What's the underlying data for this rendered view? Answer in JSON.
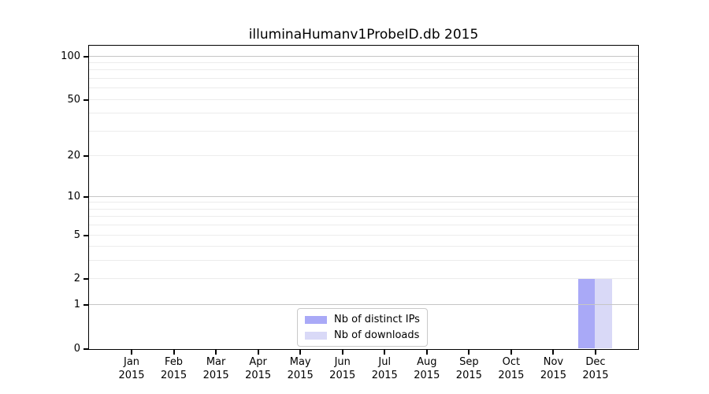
{
  "chart_data": {
    "type": "bar",
    "title": "illuminaHumanv1ProbeID.db 2015",
    "categories": [
      "Jan 2015",
      "Feb 2015",
      "Mar 2015",
      "Apr 2015",
      "May 2015",
      "Jun 2015",
      "Jul 2015",
      "Aug 2015",
      "Sep 2015",
      "Oct 2015",
      "Nov 2015",
      "Dec 2015"
    ],
    "series": [
      {
        "name": "Nb of distinct IPs",
        "color": "#a9a9f7",
        "values": [
          0,
          0,
          0,
          0,
          0,
          0,
          0,
          0,
          0,
          0,
          0,
          2
        ]
      },
      {
        "name": "Nb of downloads",
        "color": "#d9d9f7",
        "values": [
          0,
          0,
          0,
          0,
          0,
          0,
          0,
          0,
          0,
          0,
          0,
          2
        ]
      }
    ],
    "yscale": "log1p",
    "yticks": [
      100,
      50,
      20,
      10,
      5,
      2,
      1,
      0
    ],
    "ylim": [
      0,
      118
    ],
    "xlim": [
      -1,
      12
    ],
    "bar_width": 0.4,
    "grid": {
      "major_values": [
        1,
        10,
        100
      ],
      "minor_values": [
        2,
        3,
        4,
        5,
        6,
        7,
        8,
        9,
        20,
        30,
        40,
        50,
        60,
        70,
        80,
        90
      ],
      "major_color": "#c6c6c6",
      "minor_color": "#ececec"
    },
    "legend_position": "lower center",
    "axis_color": "#000000"
  }
}
